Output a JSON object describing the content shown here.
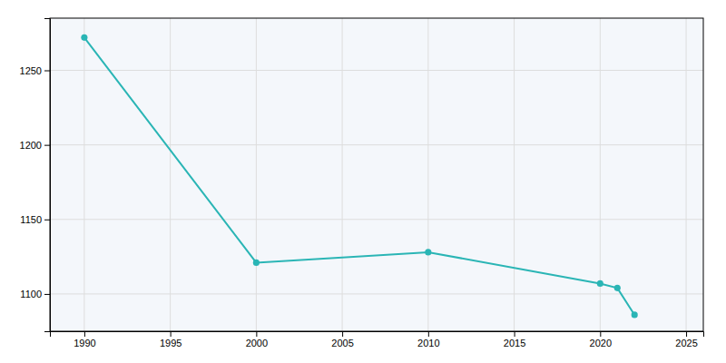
{
  "chart_data": {
    "type": "line",
    "x": [
      1990,
      2000,
      2010,
      2020,
      2021,
      2022
    ],
    "values": [
      1272,
      1121,
      1128,
      1107,
      1104,
      1086
    ],
    "color": "#2ab5b5",
    "marker": "circle",
    "xlim": [
      1988,
      2026
    ],
    "ylim": [
      1075,
      1285
    ],
    "xticks": [
      1990,
      1995,
      2000,
      2005,
      2010,
      2015,
      2020,
      2025
    ],
    "yticks": [
      1100,
      1150,
      1200,
      1250
    ],
    "grid": true
  }
}
